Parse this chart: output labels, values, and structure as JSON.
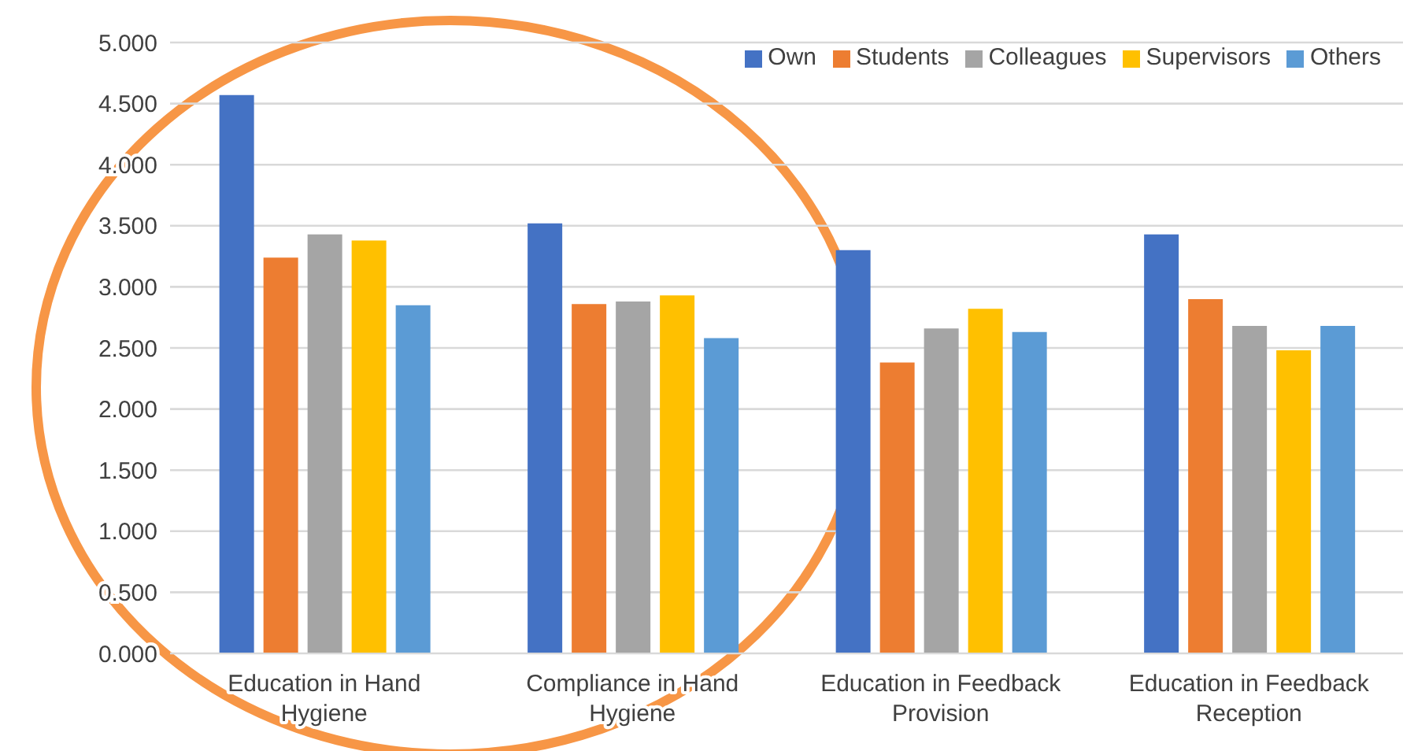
{
  "chart_data": {
    "type": "bar",
    "categories": [
      "Education in Hand Hygiene",
      "Compliance in Hand Hygiene",
      "Education in Feedback Provision",
      "Education in Feedback Reception"
    ],
    "series": [
      {
        "name": "Own",
        "color": "#4472c4",
        "values": [
          4.57,
          3.52,
          3.3,
          3.43
        ]
      },
      {
        "name": "Students",
        "color": "#ed7d31",
        "values": [
          3.24,
          2.86,
          2.38,
          2.9
        ]
      },
      {
        "name": "Colleagues",
        "color": "#a5a5a5",
        "values": [
          3.43,
          2.88,
          2.66,
          2.68
        ]
      },
      {
        "name": "Supervisors",
        "color": "#ffc000",
        "values": [
          3.38,
          2.93,
          2.82,
          2.48
        ]
      },
      {
        "name": "Others",
        "color": "#5b9bd5",
        "values": [
          2.85,
          2.58,
          2.63,
          2.68
        ]
      }
    ],
    "ylim": [
      0,
      5
    ],
    "yticks": [
      {
        "value": 0,
        "label": "0.000"
      },
      {
        "value": 0.5,
        "label": "0.500"
      },
      {
        "value": 1,
        "label": "1.000"
      },
      {
        "value": 1.5,
        "label": "1.500"
      },
      {
        "value": 2,
        "label": "2.000"
      },
      {
        "value": 2.5,
        "label": "2.500"
      },
      {
        "value": 3,
        "label": "3.000"
      },
      {
        "value": 3.5,
        "label": "3.500"
      },
      {
        "value": 4,
        "label": "4.000"
      },
      {
        "value": 4.5,
        "label": "4.500"
      },
      {
        "value": 5,
        "label": "5.000"
      }
    ],
    "grid": "y",
    "legend": "top right"
  }
}
